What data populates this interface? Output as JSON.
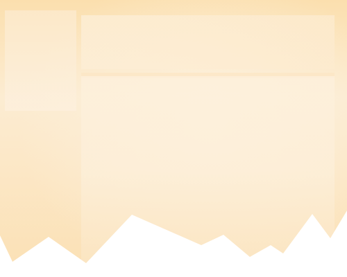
{
  "colors": {
    "paper_top": "#fbdfaa",
    "paper_mid": "#fcebcc",
    "paper_bottom": "#fbe2b7",
    "panel_light": "#fdf0db",
    "panel_mid": "#fcebd0",
    "torn_white": "#ffffff"
  },
  "sidebar": {},
  "header": {},
  "main": {}
}
